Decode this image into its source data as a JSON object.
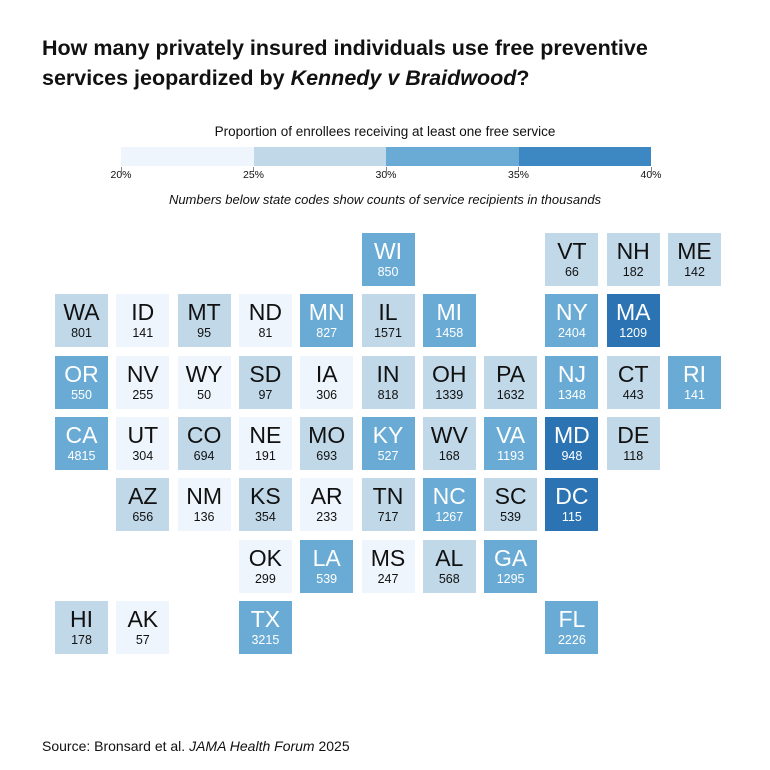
{
  "title": {
    "line1": "How many privately insured individuals use free preventive",
    "line2_prefix": "services jeopardized by ",
    "line2_italic": "Kennedy v Braidwood",
    "line2_suffix": "?"
  },
  "legend": {
    "title": "Proportion of enrollees receiving at least one free service",
    "ticks": [
      "20%",
      "25%",
      "30%",
      "35%",
      "40%"
    ],
    "colors": [
      "#eef5fc",
      "#c0d8e8",
      "#6aabd5",
      "#3d88c3"
    ]
  },
  "note": "Numbers below state codes show counts of service recipients in thousands",
  "source": {
    "prefix": "Source: Bronsard et al. ",
    "journal": "JAMA Health Forum",
    "year": " 2025"
  },
  "chart_data": {
    "type": "tile-grid map",
    "value_label": "Count of service recipients (thousands)",
    "color_scale": {
      "bins": [
        "20-25%",
        "25-30%",
        "30-35%",
        "35-40%"
      ],
      "colors": [
        "#eef5fc",
        "#c0d8e8",
        "#6aabd5",
        "#3d88c3"
      ],
      "strong_color": "#2b73b3"
    },
    "states": [
      {
        "code": "WI",
        "count": 850,
        "bin": 2,
        "row": 0,
        "col": 5
      },
      {
        "code": "VT",
        "count": 66,
        "bin": 1,
        "row": 0,
        "col": 8
      },
      {
        "code": "NH",
        "count": 182,
        "bin": 1,
        "row": 0,
        "col": 9
      },
      {
        "code": "ME",
        "count": 142,
        "bin": 1,
        "row": 0,
        "col": 10
      },
      {
        "code": "WA",
        "count": 801,
        "bin": 1,
        "row": 1,
        "col": 0
      },
      {
        "code": "ID",
        "count": 141,
        "bin": 0,
        "row": 1,
        "col": 1
      },
      {
        "code": "MT",
        "count": 95,
        "bin": 1,
        "row": 1,
        "col": 2
      },
      {
        "code": "ND",
        "count": 81,
        "bin": 0,
        "row": 1,
        "col": 3
      },
      {
        "code": "MN",
        "count": 827,
        "bin": 2,
        "row": 1,
        "col": 4
      },
      {
        "code": "IL",
        "count": 1571,
        "bin": 1,
        "row": 1,
        "col": 5
      },
      {
        "code": "MI",
        "count": 1458,
        "bin": 2,
        "row": 1,
        "col": 6
      },
      {
        "code": "NY",
        "count": 2404,
        "bin": 2,
        "row": 1,
        "col": 8
      },
      {
        "code": "MA",
        "count": 1209,
        "bin": 4,
        "row": 1,
        "col": 9
      },
      {
        "code": "OR",
        "count": 550,
        "bin": 2,
        "row": 2,
        "col": 0
      },
      {
        "code": "NV",
        "count": 255,
        "bin": 0,
        "row": 2,
        "col": 1
      },
      {
        "code": "WY",
        "count": 50,
        "bin": 0,
        "row": 2,
        "col": 2
      },
      {
        "code": "SD",
        "count": 97,
        "bin": 1,
        "row": 2,
        "col": 3
      },
      {
        "code": "IA",
        "count": 306,
        "bin": 0,
        "row": 2,
        "col": 4
      },
      {
        "code": "IN",
        "count": 818,
        "bin": 1,
        "row": 2,
        "col": 5
      },
      {
        "code": "OH",
        "count": 1339,
        "bin": 1,
        "row": 2,
        "col": 6
      },
      {
        "code": "PA",
        "count": 1632,
        "bin": 1,
        "row": 2,
        "col": 7
      },
      {
        "code": "NJ",
        "count": 1348,
        "bin": 2,
        "row": 2,
        "col": 8
      },
      {
        "code": "CT",
        "count": 443,
        "bin": 1,
        "row": 2,
        "col": 9
      },
      {
        "code": "RI",
        "count": 141,
        "bin": 2,
        "row": 2,
        "col": 10
      },
      {
        "code": "CA",
        "count": 4815,
        "bin": 2,
        "row": 3,
        "col": 0
      },
      {
        "code": "UT",
        "count": 304,
        "bin": 0,
        "row": 3,
        "col": 1
      },
      {
        "code": "CO",
        "count": 694,
        "bin": 1,
        "row": 3,
        "col": 2
      },
      {
        "code": "NE",
        "count": 191,
        "bin": 0,
        "row": 3,
        "col": 3
      },
      {
        "code": "MO",
        "count": 693,
        "bin": 1,
        "row": 3,
        "col": 4
      },
      {
        "code": "KY",
        "count": 527,
        "bin": 2,
        "row": 3,
        "col": 5
      },
      {
        "code": "WV",
        "count": 168,
        "bin": 1,
        "row": 3,
        "col": 6
      },
      {
        "code": "VA",
        "count": 1193,
        "bin": 2,
        "row": 3,
        "col": 7
      },
      {
        "code": "MD",
        "count": 948,
        "bin": 4,
        "row": 3,
        "col": 8
      },
      {
        "code": "DE",
        "count": 118,
        "bin": 1,
        "row": 3,
        "col": 9
      },
      {
        "code": "AZ",
        "count": 656,
        "bin": 1,
        "row": 4,
        "col": 1
      },
      {
        "code": "NM",
        "count": 136,
        "bin": 0,
        "row": 4,
        "col": 2
      },
      {
        "code": "KS",
        "count": 354,
        "bin": 1,
        "row": 4,
        "col": 3
      },
      {
        "code": "AR",
        "count": 233,
        "bin": 0,
        "row": 4,
        "col": 4
      },
      {
        "code": "TN",
        "count": 717,
        "bin": 1,
        "row": 4,
        "col": 5
      },
      {
        "code": "NC",
        "count": 1267,
        "bin": 2,
        "row": 4,
        "col": 6
      },
      {
        "code": "SC",
        "count": 539,
        "bin": 1,
        "row": 4,
        "col": 7
      },
      {
        "code": "DC",
        "count": 115,
        "bin": 4,
        "row": 4,
        "col": 8
      },
      {
        "code": "OK",
        "count": 299,
        "bin": 0,
        "row": 5,
        "col": 3
      },
      {
        "code": "LA",
        "count": 539,
        "bin": 2,
        "row": 5,
        "col": 4
      },
      {
        "code": "MS",
        "count": 247,
        "bin": 0,
        "row": 5,
        "col": 5
      },
      {
        "code": "AL",
        "count": 568,
        "bin": 1,
        "row": 5,
        "col": 6
      },
      {
        "code": "GA",
        "count": 1295,
        "bin": 2,
        "row": 5,
        "col": 7
      },
      {
        "code": "HI",
        "count": 178,
        "bin": 1,
        "row": 6,
        "col": 0
      },
      {
        "code": "AK",
        "count": 57,
        "bin": 0,
        "row": 6,
        "col": 1
      },
      {
        "code": "TX",
        "count": 3215,
        "bin": 2,
        "row": 6,
        "col": 3
      },
      {
        "code": "FL",
        "count": 2226,
        "bin": 2,
        "row": 6,
        "col": 8
      }
    ]
  }
}
